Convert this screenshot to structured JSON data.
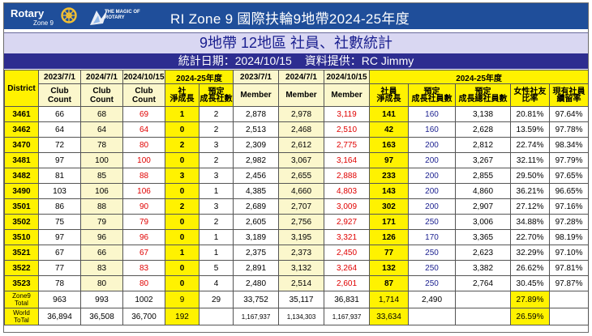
{
  "header": {
    "logo_text": "Rotary",
    "logo_zone": "Zone 9",
    "magic_text": "THE MAGIC OF ROTARY",
    "title": "RI Zone 9   國際扶輪9地帶2024-25年度"
  },
  "subtitle": "9地帶  12地區  社員、社數統計",
  "stats_date": "統計日期：2024/10/15",
  "data_provider": "資料提供：RC Jimmy",
  "table": {
    "group_headers": [
      "2023/7/1",
      "2024/7/1",
      "2024/10/15",
      "2024-25年度",
      "2023/7/1",
      "2024/7/1",
      "2024/10/15",
      "2024-25年度"
    ],
    "col_headers": [
      "District",
      "Club Count",
      "Club Count",
      "Club Count",
      "社\n淨成長",
      "預定\n成長社數",
      "Member",
      "Member",
      "Member",
      "社員\n淨成長",
      "預定\n成長社員數",
      "預定\n成長總社員數",
      "女性社友\n比率",
      "現有社員\n續留率"
    ],
    "rows": [
      [
        "3461",
        "66",
        "68",
        "69",
        "1",
        "2",
        "2,878",
        "2,978",
        "3,119",
        "141",
        "160",
        "3,138",
        "20.81%",
        "97.64%"
      ],
      [
        "3462",
        "64",
        "64",
        "64",
        "0",
        "2",
        "2,513",
        "2,468",
        "2,510",
        "42",
        "160",
        "2,628",
        "13.59%",
        "97.78%"
      ],
      [
        "3470",
        "72",
        "78",
        "80",
        "2",
        "3",
        "2,309",
        "2,612",
        "2,775",
        "163",
        "200",
        "2,812",
        "22.74%",
        "98.34%"
      ],
      [
        "3481",
        "97",
        "100",
        "100",
        "0",
        "2",
        "2,982",
        "3,067",
        "3,164",
        "97",
        "200",
        "3,267",
        "32.11%",
        "97.79%"
      ],
      [
        "3482",
        "81",
        "85",
        "88",
        "3",
        "3",
        "2,456",
        "2,655",
        "2,888",
        "233",
        "200",
        "2,855",
        "29.50%",
        "97.65%"
      ],
      [
        "3490",
        "103",
        "106",
        "106",
        "0",
        "1",
        "4,385",
        "4,660",
        "4,803",
        "143",
        "200",
        "4,860",
        "36.21%",
        "96.65%"
      ],
      [
        "3501",
        "86",
        "88",
        "90",
        "2",
        "3",
        "2,689",
        "2,707",
        "3,009",
        "302",
        "200",
        "2,907",
        "27.12%",
        "97.16%"
      ],
      [
        "3502",
        "75",
        "79",
        "79",
        "0",
        "2",
        "2,605",
        "2,756",
        "2,927",
        "171",
        "250",
        "3,006",
        "34.88%",
        "97.28%"
      ],
      [
        "3510",
        "97",
        "96",
        "96",
        "0",
        "1",
        "3,189",
        "3,195",
        "3,321",
        "126",
        "170",
        "3,365",
        "22.70%",
        "98.19%"
      ],
      [
        "3521",
        "67",
        "66",
        "67",
        "1",
        "1",
        "2,375",
        "2,373",
        "2,450",
        "77",
        "250",
        "2,623",
        "32.29%",
        "97.10%"
      ],
      [
        "3522",
        "77",
        "83",
        "83",
        "0",
        "5",
        "2,891",
        "3,132",
        "3,264",
        "132",
        "250",
        "3,382",
        "26.62%",
        "97.81%"
      ],
      [
        "3523",
        "78",
        "80",
        "80",
        "0",
        "4",
        "2,480",
        "2,514",
        "2,601",
        "87",
        "250",
        "2,764",
        "30.45%",
        "97.87%"
      ]
    ],
    "zone_total": {
      "label1": "Zone9",
      "label2": "Total",
      "cells": [
        "963",
        "993",
        "1002",
        "9",
        "29",
        "33,752",
        "35,117",
        "36,831",
        "1,714",
        "2,490",
        "",
        "27.89%",
        ""
      ]
    },
    "world_total": {
      "label1": "World",
      "label2": "ToTal",
      "cells": [
        "36,894",
        "36,508",
        "36,700",
        "192",
        "",
        "1,167,937",
        "1,134,303",
        "1,167,937",
        "33,634",
        "",
        "",
        "26.59%",
        ""
      ]
    }
  },
  "colors": {
    "header_blue": "#1f4e9a",
    "yellow": "#fff200",
    "light_yellow": "#fbf7cc",
    "red": "#e00000",
    "navy": "#2d2d90"
  }
}
